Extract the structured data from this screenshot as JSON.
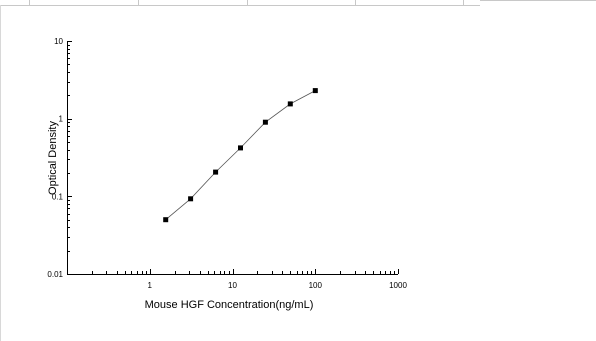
{
  "chart_data": {
    "type": "scatter",
    "title": "",
    "xlabel": "Mouse HGF Concentration(ng/mL)",
    "ylabel": "Optical  Density",
    "x_scale": "log",
    "y_scale": "log",
    "xlim": [
      0.1,
      1000
    ],
    "ylim": [
      0.01,
      10
    ],
    "x_ticks": [
      {
        "value": 1,
        "label": "1"
      },
      {
        "value": 10,
        "label": "10"
      },
      {
        "value": 100,
        "label": "100"
      },
      {
        "value": 1000,
        "label": "1000"
      }
    ],
    "y_ticks": [
      {
        "value": 0.01,
        "label": "0.01"
      },
      {
        "value": 0.1,
        "label": "0.1"
      },
      {
        "value": 1,
        "label": "1"
      },
      {
        "value": 10,
        "label": "10"
      }
    ],
    "grid": false,
    "legend": "none",
    "line_color": "#555555",
    "marker_color": "#000000",
    "marker": "square",
    "series": [
      {
        "x": [
          1.56,
          3.12,
          6.25,
          12.5,
          25,
          50,
          100
        ],
        "y": [
          0.05,
          0.093,
          0.205,
          0.42,
          0.9,
          1.55,
          2.3
        ]
      }
    ]
  }
}
